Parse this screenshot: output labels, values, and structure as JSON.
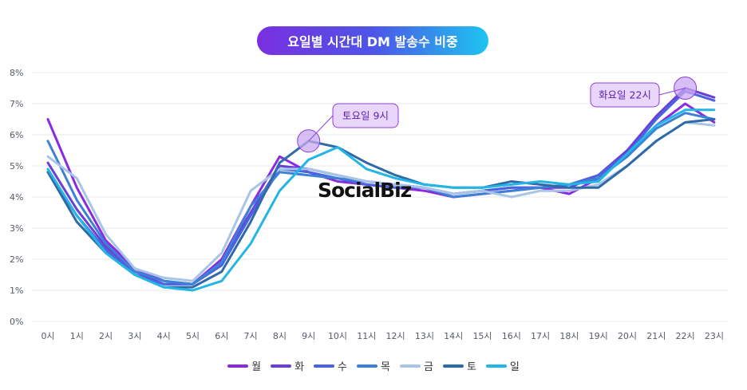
{
  "title": "요일별 시간대 DM 발송수 비중",
  "watermark": "SocialBiz",
  "chart_data": {
    "type": "line",
    "title": "요일별 시간대 DM 발송수 비중",
    "x": [
      "0시",
      "1시",
      "2시",
      "3시",
      "4시",
      "5시",
      "6시",
      "7시",
      "8시",
      "9시",
      "10시",
      "11시",
      "12시",
      "13시",
      "14시",
      "15시",
      "16시",
      "17시",
      "18시",
      "19시",
      "20시",
      "21시",
      "22시",
      "23시"
    ],
    "yticks": [
      "0%",
      "1%",
      "2%",
      "3%",
      "4%",
      "5%",
      "6%",
      "7%",
      "8%"
    ],
    "ylim": [
      0,
      8
    ],
    "grid": true,
    "legend_position": "bottom",
    "series": [
      {
        "name": "월",
        "color": "#8a2be2",
        "values": [
          6.5,
          4.3,
          2.6,
          1.7,
          1.3,
          1.2,
          2.0,
          3.7,
          5.3,
          4.8,
          4.5,
          4.4,
          4.3,
          4.2,
          4.0,
          4.1,
          4.2,
          4.3,
          4.1,
          4.6,
          5.4,
          6.3,
          7.0,
          6.4
        ]
      },
      {
        "name": "화",
        "color": "#6a3fd8",
        "values": [
          5.1,
          3.6,
          2.4,
          1.6,
          1.2,
          1.2,
          1.9,
          3.5,
          5.0,
          4.9,
          4.7,
          4.5,
          4.4,
          4.3,
          4.1,
          4.2,
          4.3,
          4.3,
          4.3,
          4.7,
          5.5,
          6.6,
          7.5,
          7.2
        ]
      },
      {
        "name": "수",
        "color": "#4a63e0",
        "values": [
          4.8,
          3.4,
          2.3,
          1.5,
          1.2,
          1.2,
          1.8,
          3.4,
          4.9,
          4.8,
          4.6,
          4.4,
          4.3,
          4.3,
          4.1,
          4.2,
          4.3,
          4.3,
          4.4,
          4.7,
          5.4,
          6.5,
          7.4,
          7.1
        ]
      },
      {
        "name": "목",
        "color": "#3b82d6",
        "values": [
          5.8,
          3.9,
          2.5,
          1.6,
          1.3,
          1.2,
          1.9,
          3.7,
          4.8,
          4.7,
          4.6,
          4.5,
          4.4,
          4.3,
          4.0,
          4.1,
          4.2,
          4.3,
          4.4,
          4.6,
          5.3,
          6.2,
          6.7,
          6.5
        ]
      },
      {
        "name": "금",
        "color": "#a8c4e6",
        "values": [
          5.3,
          4.6,
          2.8,
          1.7,
          1.4,
          1.3,
          2.2,
          4.2,
          4.9,
          4.9,
          4.7,
          4.5,
          4.4,
          4.3,
          4.1,
          4.2,
          4.0,
          4.2,
          4.2,
          4.4,
          5.0,
          5.8,
          6.4,
          6.3
        ]
      },
      {
        "name": "토",
        "color": "#2f6aa8",
        "values": [
          4.8,
          3.2,
          2.2,
          1.5,
          1.1,
          1.1,
          1.6,
          3.2,
          5.1,
          5.8,
          5.6,
          5.1,
          4.7,
          4.4,
          4.3,
          4.3,
          4.5,
          4.4,
          4.3,
          4.3,
          5.0,
          5.8,
          6.4,
          6.5
        ]
      },
      {
        "name": "일",
        "color": "#22b5e6",
        "values": [
          4.9,
          3.4,
          2.2,
          1.5,
          1.1,
          1.0,
          1.3,
          2.5,
          4.2,
          5.2,
          5.6,
          4.9,
          4.6,
          4.4,
          4.3,
          4.3,
          4.4,
          4.5,
          4.4,
          4.5,
          5.4,
          6.3,
          6.8,
          6.8
        ]
      }
    ],
    "annotations": [
      {
        "label": "토요일 9시",
        "series": "토",
        "x_index": 9,
        "value": 5.8
      },
      {
        "label": "화요일 22시",
        "series": "화",
        "x_index": 22,
        "value": 7.5
      }
    ]
  }
}
